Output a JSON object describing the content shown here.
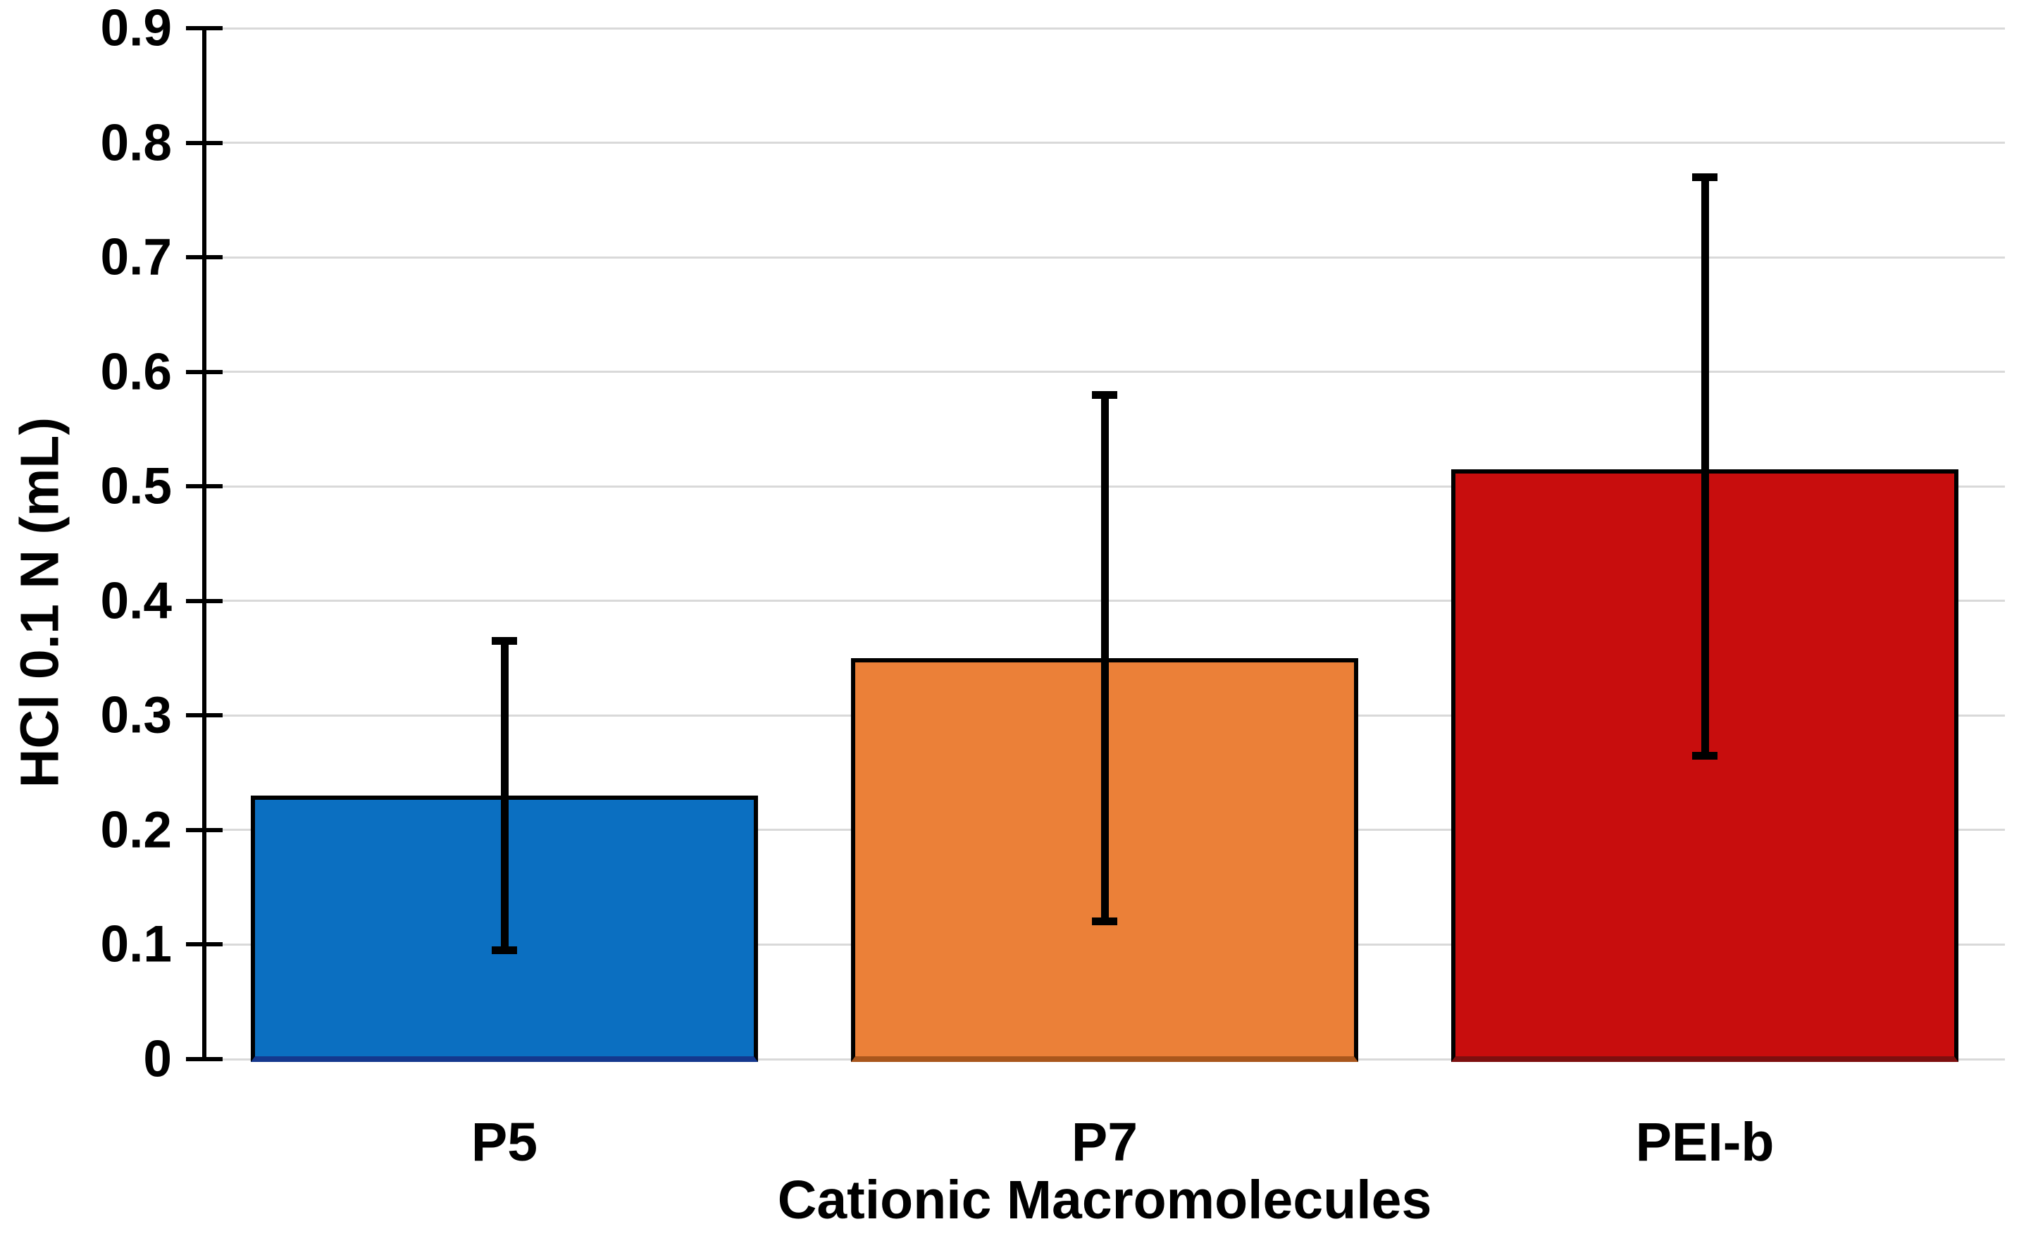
{
  "chart_data": {
    "type": "bar",
    "categories": [
      "P5",
      "P7",
      "PEI-b"
    ],
    "values": [
      0.23,
      0.35,
      0.515
    ],
    "error_upper": [
      0.365,
      0.58,
      0.77
    ],
    "error_lower": [
      0.095,
      0.12,
      0.265
    ],
    "xlabel": "Cationic Macromolecules",
    "ylabel": "HCl 0.1 N (mL)",
    "ylim": [
      0,
      0.9
    ],
    "yticks": [
      "0",
      "0.1",
      "0.2",
      "0.3",
      "0.4",
      "0.5",
      "0.6",
      "0.7",
      "0.8",
      "0.9"
    ],
    "grid": true,
    "legend": false,
    "bar_colors": [
      "#0B6FC1",
      "#EB8038",
      "#C80D0D"
    ],
    "bar_bottom_edge_colors": [
      "#14388E",
      "#A9561C",
      "#7E0F0F"
    ],
    "bar_border_color": "#000000",
    "error_bar_color": "#000000",
    "grid_color": "#D9D9D9",
    "axis_color": "#000000",
    "background_color": "#FFFFFF"
  }
}
